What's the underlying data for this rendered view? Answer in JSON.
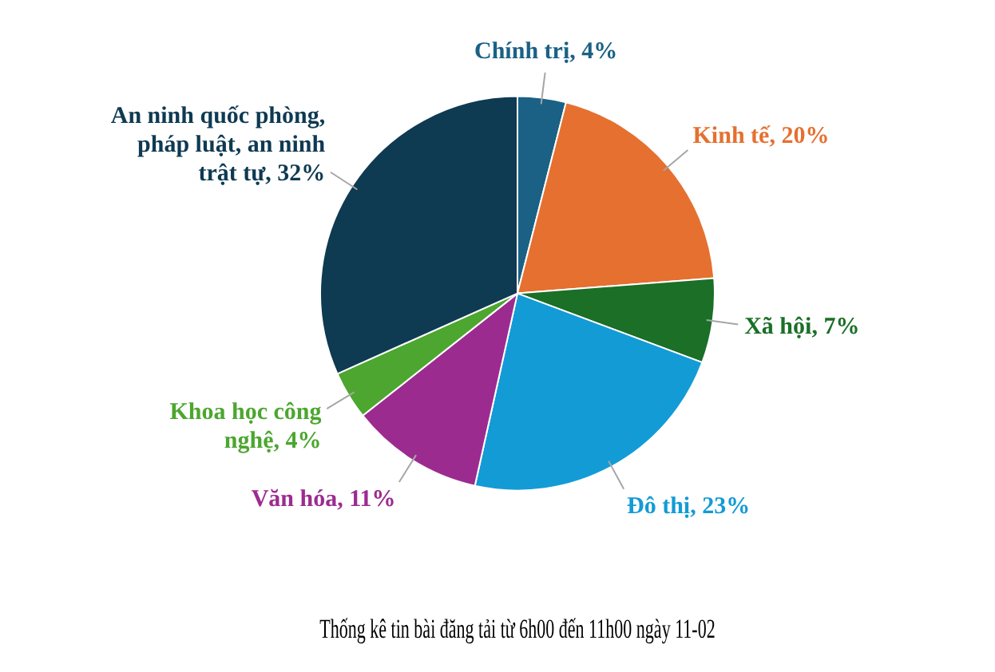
{
  "chart_data": {
    "type": "pie",
    "title": "Thống kê tin bài đăng tải từ 6h00 đến 11h00 ngày 11-02",
    "categories": [
      "Chính trị",
      "Kinh tế",
      "Xã hội",
      "Đô thị",
      "Văn hóa",
      "Khoa học công nghệ",
      "An ninh quốc phòng, pháp luật, an ninh trật tự"
    ],
    "values": [
      4,
      20,
      7,
      23,
      11,
      4,
      32
    ],
    "value_labels": [
      "4%",
      "20%",
      "7%",
      "23%",
      "11%",
      "4%",
      "32%"
    ],
    "colors": [
      "#1a6185",
      "#e57030",
      "#1b6f27",
      "#139bd6",
      "#9c2b90",
      "#4ca62f",
      "#0e3a52"
    ],
    "legend": false
  }
}
